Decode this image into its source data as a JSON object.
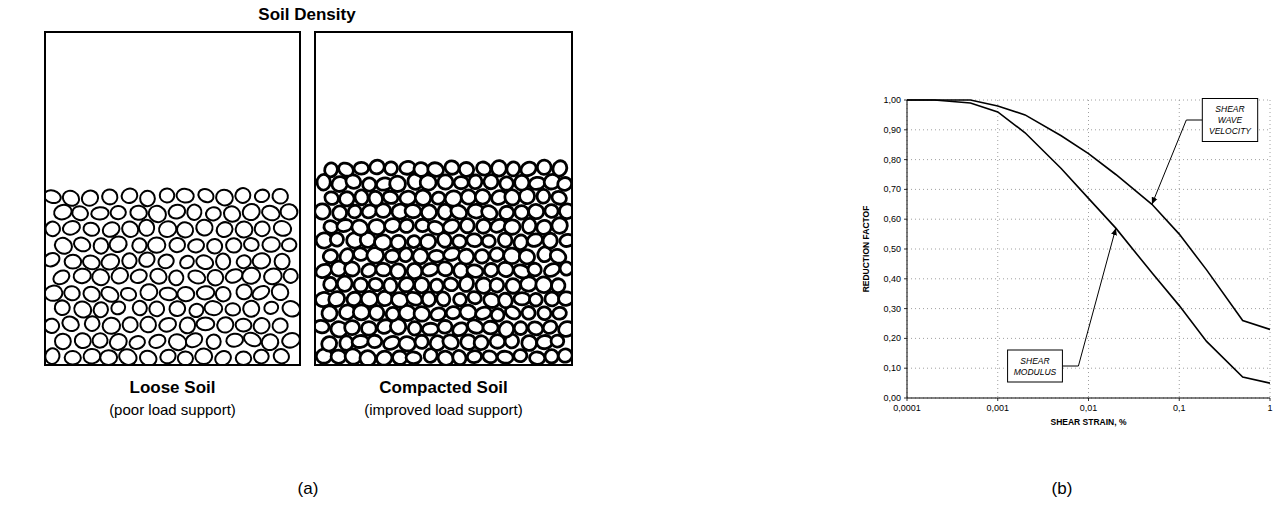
{
  "panel_labels": [
    "(a)",
    "(b)"
  ],
  "diagram": {
    "title": "Soil Density",
    "boxes": [
      {
        "label": "Loose Soil",
        "caption": "(poor load support)"
      },
      {
        "label": "Compacted Soil",
        "caption": "(improved load support)"
      }
    ]
  },
  "chart_data": {
    "type": "line",
    "x_label": "SHEAR STRAIN, %",
    "y_label": "REDUCTION FACTOF",
    "x": [
      0.0001,
      0.0002,
      0.0005,
      0.001,
      0.002,
      0.005,
      0.01,
      0.02,
      0.05,
      0.1,
      0.2,
      0.5,
      1
    ],
    "series": [
      {
        "name": "SHEAR MODULUS",
        "color": "#000000",
        "values": [
          1.0,
          1.0,
          0.99,
          0.96,
          0.89,
          0.77,
          0.67,
          0.57,
          0.42,
          0.31,
          0.19,
          0.07,
          0.05
        ]
      },
      {
        "name": "SHEAR WAVE VELOCITY",
        "color": "#000000",
        "values": [
          1.0,
          1.0,
          1.0,
          0.98,
          0.95,
          0.88,
          0.82,
          0.75,
          0.65,
          0.55,
          0.43,
          0.26,
          0.23
        ]
      }
    ],
    "xlim": [
      0.0001,
      1
    ],
    "ylim": [
      0,
      1
    ],
    "xticks": [
      {
        "value": 0.0001,
        "label": "0,0001"
      },
      {
        "value": 0.001,
        "label": "0,001"
      },
      {
        "value": 0.01,
        "label": "0,01"
      },
      {
        "value": 0.1,
        "label": "0,1"
      },
      1
    ],
    "yticks": [
      {
        "value": 0,
        "label": "0,00"
      },
      {
        "value": 0.1,
        "label": "0,10"
      },
      {
        "value": 0.2,
        "label": "0,20"
      },
      {
        "value": 0.3,
        "label": "0,30"
      },
      {
        "value": 0.4,
        "label": "0,40"
      },
      {
        "value": 0.5,
        "label": "0,50"
      },
      {
        "value": 0.6,
        "label": "0,60"
      },
      {
        "value": 0.7,
        "label": "0,70"
      },
      {
        "value": 0.8,
        "label": "0,80"
      },
      {
        "value": 0.9,
        "label": "0,90"
      },
      {
        "value": 1,
        "label": "1,00"
      }
    ],
    "log": "x",
    "grid": true
  }
}
